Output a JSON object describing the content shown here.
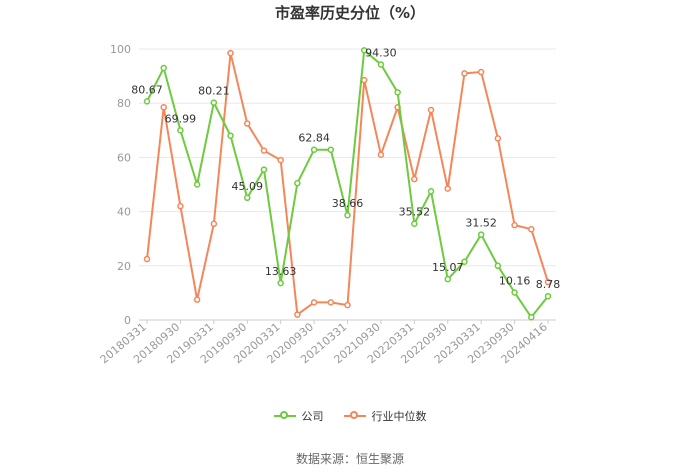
{
  "title": "市盈率历史分位（%）",
  "source": "数据来源：恒生聚源",
  "colors": {
    "company": "#6dcb3f",
    "industry": "#f4875a",
    "grid": "#e8e8e8",
    "axis": "#cccccc"
  },
  "legend": {
    "company": "公司",
    "industry": "行业中位数"
  },
  "chart_data": {
    "type": "line",
    "title": "市盈率历史分位（%）",
    "xlabel": "",
    "ylabel": "",
    "ylim": [
      0,
      100
    ],
    "yticks": [
      0,
      20,
      40,
      60,
      80,
      100
    ],
    "grid": true,
    "legend_position": "bottom",
    "x": [
      "20180331",
      "20180630",
      "20180930",
      "20181231",
      "20190331",
      "20190630",
      "20190930",
      "20191231",
      "20200331",
      "20200630",
      "20200930",
      "20201231",
      "20210331",
      "20210630",
      "20210930",
      "20211231",
      "20220331",
      "20220630",
      "20220930",
      "20221231",
      "20230331",
      "20230630",
      "20230930",
      "20231231",
      "20240416"
    ],
    "xtick_labels": [
      "20180331",
      "20180930",
      "20190331",
      "20190930",
      "20200331",
      "20200930",
      "20210331",
      "20210930",
      "20220331",
      "20220930",
      "20230331",
      "20230930",
      "20240416"
    ],
    "series": [
      {
        "name": "公司",
        "values": [
          80.67,
          93,
          69.99,
          50,
          80.21,
          68,
          45.09,
          55.5,
          13.63,
          50.5,
          62.84,
          62.84,
          38.66,
          99.5,
          94.3,
          84,
          35.52,
          47.5,
          15.07,
          21.5,
          31.52,
          20,
          10.16,
          1,
          8.78
        ],
        "labels": {
          "0": "80.67",
          "2": "69.99",
          "4": "80.21",
          "6": "45.09",
          "8": "13.63",
          "10": "62.84",
          "12": "38.66",
          "14": "94.30",
          "16": "35.52",
          "18": "15.07",
          "20": "31.52",
          "22": "10.16",
          "24": "8.78"
        }
      },
      {
        "name": "行业中位数",
        "values": [
          22.5,
          78.5,
          42,
          7.5,
          35.5,
          98.5,
          72.5,
          62.5,
          59,
          2,
          6.5,
          6.5,
          5.5,
          88.5,
          61,
          78.5,
          52,
          77.5,
          48.5,
          91,
          91.5,
          67,
          35,
          33.5,
          14
        ]
      }
    ]
  }
}
